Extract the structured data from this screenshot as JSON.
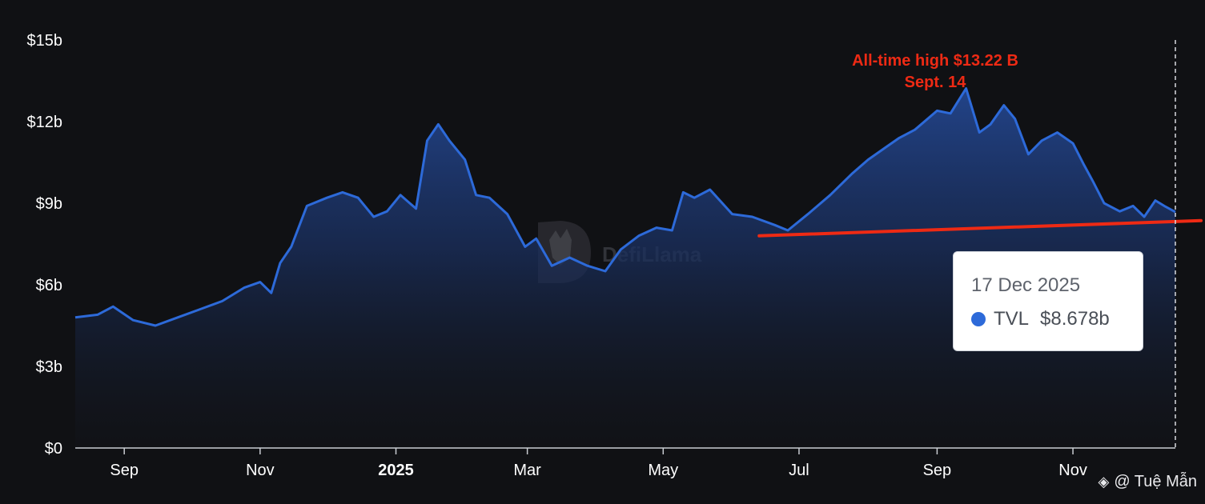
{
  "chart_data": {
    "type": "area",
    "xlabel": "",
    "ylabel": "",
    "ylim": [
      0,
      15
    ],
    "y_unit": "billion USD",
    "yticks": [
      "$0",
      "$3b",
      "$6b",
      "$9b",
      "$12b",
      "$15b"
    ],
    "xticks": [
      {
        "label": "Sep",
        "date": "2024-09-01",
        "bold": false
      },
      {
        "label": "Nov",
        "date": "2024-11-01",
        "bold": false
      },
      {
        "label": "2025",
        "date": "2025-01-01",
        "bold": true
      },
      {
        "label": "Mar",
        "date": "2025-03-01",
        "bold": false
      },
      {
        "label": "May",
        "date": "2025-05-01",
        "bold": false
      },
      {
        "label": "Jul",
        "date": "2025-07-01",
        "bold": false
      },
      {
        "label": "Sep",
        "date": "2025-09-01",
        "bold": false
      },
      {
        "label": "Nov",
        "date": "2025-11-01",
        "bold": false
      }
    ],
    "xlim": [
      "2024-08-10",
      "2025-12-17"
    ],
    "grid": false,
    "series": [
      {
        "name": "TVL",
        "color": "#2d6ad9",
        "x": [
          "2024-08-10",
          "2024-08-20",
          "2024-08-27",
          "2024-09-05",
          "2024-09-15",
          "2024-09-25",
          "2024-10-05",
          "2024-10-15",
          "2024-10-25",
          "2024-11-01",
          "2024-11-06",
          "2024-11-10",
          "2024-11-15",
          "2024-11-22",
          "2024-12-01",
          "2024-12-08",
          "2024-12-15",
          "2024-12-22",
          "2024-12-28",
          "2025-01-03",
          "2025-01-10",
          "2025-01-15",
          "2025-01-20",
          "2025-01-25",
          "2025-02-01",
          "2025-02-06",
          "2025-02-12",
          "2025-02-20",
          "2025-02-28",
          "2025-03-05",
          "2025-03-12",
          "2025-03-20",
          "2025-03-28",
          "2025-04-05",
          "2025-04-12",
          "2025-04-20",
          "2025-04-28",
          "2025-05-05",
          "2025-05-10",
          "2025-05-15",
          "2025-05-22",
          "2025-06-01",
          "2025-06-10",
          "2025-06-20",
          "2025-06-26",
          "2025-07-05",
          "2025-07-15",
          "2025-07-25",
          "2025-08-01",
          "2025-08-08",
          "2025-08-15",
          "2025-08-22",
          "2025-09-01",
          "2025-09-07",
          "2025-09-14",
          "2025-09-20",
          "2025-09-25",
          "2025-10-01",
          "2025-10-06",
          "2025-10-12",
          "2025-10-18",
          "2025-10-25",
          "2025-11-01",
          "2025-11-06",
          "2025-11-10",
          "2025-11-15",
          "2025-11-22",
          "2025-11-28",
          "2025-12-03",
          "2025-12-08",
          "2025-12-12",
          "2025-12-17"
        ],
        "values": [
          4.8,
          4.9,
          5.2,
          4.7,
          4.5,
          4.8,
          5.1,
          5.4,
          5.9,
          6.1,
          5.7,
          6.8,
          7.4,
          8.9,
          9.2,
          9.4,
          9.2,
          8.5,
          8.7,
          9.3,
          8.8,
          11.3,
          11.9,
          11.3,
          10.6,
          9.3,
          9.2,
          8.6,
          7.4,
          7.7,
          6.7,
          7.0,
          6.7,
          6.5,
          7.3,
          7.8,
          8.1,
          8.0,
          9.4,
          9.2,
          9.5,
          8.6,
          8.5,
          8.2,
          8.0,
          8.6,
          9.3,
          10.1,
          10.6,
          11.0,
          11.4,
          11.7,
          12.4,
          12.3,
          13.22,
          11.6,
          11.9,
          12.6,
          12.1,
          10.8,
          11.3,
          11.6,
          11.2,
          10.4,
          9.8,
          9.0,
          8.7,
          8.9,
          8.5,
          9.1,
          8.9,
          8.678
        ]
      }
    ],
    "annotation": {
      "line1": "All-time high $13.22 B",
      "line2": "Sept. 14",
      "color": "#ee2a14"
    },
    "support_line": {
      "color": "#ee2a14",
      "start": {
        "date": "2025-06-16",
        "value": 7.8
      },
      "end": {
        "date": "2025-12-17",
        "value": 8.3
      }
    },
    "legend_position": "tooltip, right"
  },
  "tooltip": {
    "date": "17 Dec 2025",
    "series_name": "TVL",
    "value": "$8.678b",
    "dot_color": "#2d6ad9"
  },
  "watermark": {
    "text": "DefiLlama",
    "icon": "llama-logo-icon"
  },
  "credit": {
    "icon": "binance-diamond-icon",
    "text": "@ Tuệ Mẫn"
  }
}
